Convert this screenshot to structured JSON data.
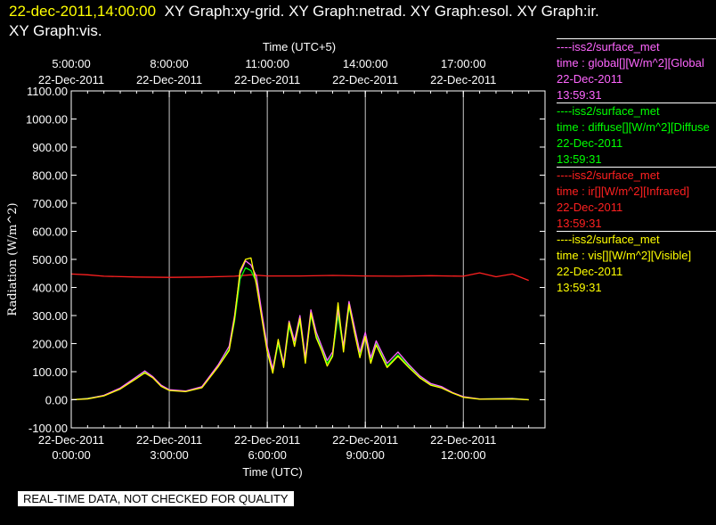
{
  "header": {
    "date_time": "22-dec-2011,14:00:00",
    "line1_rest": "XY Graph:xy-grid.  XY Graph:netrad.  XY Graph:esol.  XY Graph:ir.",
    "line2": "XY Graph:vis."
  },
  "legend": [
    {
      "source": "iss2/surface_met",
      "var": "time : global[][W/m^2][Global",
      "date": "22-Dec-2011",
      "time": "13:59:31",
      "color": "#ff66ff"
    },
    {
      "source": "iss2/surface_met",
      "var": "time : diffuse[][W/m^2][Diffuse",
      "date": "22-Dec-2011",
      "time": "13:59:31",
      "color": "#00ff00"
    },
    {
      "source": "iss2/surface_met",
      "var": "time : ir[][W/m^2][Infrared]",
      "date": "22-Dec-2011",
      "time": "13:59:31",
      "color": "#ff2020"
    },
    {
      "source": "iss2/surface_met",
      "var": "time : vis[][W/m^2][Visible]",
      "date": "22-Dec-2011",
      "time": "13:59:31",
      "color": "#ffff00"
    }
  ],
  "disclaimer": "REAL-TIME DATA, NOT CHECKED FOR QUALITY",
  "chart_data": {
    "type": "line",
    "xlabel": "Time (UTC)",
    "x2label": "Time (UTC+5)",
    "ylabel": "Radiation (W/m^2)",
    "xlim": [
      "22-Dec-2011 0:00",
      "22-Dec-2011 14:30"
    ],
    "ylim": [
      -100,
      1100
    ],
    "y_ticks": [
      "-100.00",
      "0.00",
      "100.00",
      "200.00",
      "300.00",
      "400.00",
      "500.00",
      "600.00",
      "700.00",
      "800.00",
      "900.00",
      "1000.00",
      "1100.00"
    ],
    "x_ticks": [
      {
        "x": "22-Dec-2011 0:00",
        "date": "22-Dec-2011",
        "time": "0:00:00"
      },
      {
        "x": "22-Dec-2011 3:00",
        "date": "22-Dec-2011",
        "time": "3:00:00"
      },
      {
        "x": "22-Dec-2011 6:00",
        "date": "22-Dec-2011",
        "time": "6:00:00"
      },
      {
        "x": "22-Dec-2011 9:00",
        "date": "22-Dec-2011",
        "time": "9:00:00"
      },
      {
        "x": "22-Dec-2011 12:00",
        "date": "22-Dec-2011",
        "time": "12:00:00"
      }
    ],
    "x2_ticks": [
      {
        "x": "22-Dec-2011 0:00",
        "date": "22-Dec-2011",
        "time": "5:00:00"
      },
      {
        "x": "22-Dec-2011 3:00",
        "date": "22-Dec-2011",
        "time": "8:00:00"
      },
      {
        "x": "22-Dec-2011 6:00",
        "date": "22-Dec-2011",
        "time": "11:00:00"
      },
      {
        "x": "22-Dec-2011 9:00",
        "date": "22-Dec-2011",
        "time": "14:00:00"
      },
      {
        "x": "22-Dec-2011 12:00",
        "date": "22-Dec-2011",
        "time": "17:00:00"
      }
    ],
    "grid": "vertical",
    "series": [
      {
        "color": "#ff2020",
        "points": [
          [
            "22-Dec-2011 0:00",
            448
          ],
          [
            "22-Dec-2011 0:30",
            445
          ],
          [
            "22-Dec-2011 1:00",
            440
          ],
          [
            "22-Dec-2011 2:00",
            437
          ],
          [
            "22-Dec-2011 3:00",
            436
          ],
          [
            "22-Dec-2011 4:00",
            437
          ],
          [
            "22-Dec-2011 5:00",
            440
          ],
          [
            "22-Dec-2011 5:30",
            445
          ],
          [
            "22-Dec-2011 6:00",
            441
          ],
          [
            "22-Dec-2011 7:00",
            441
          ],
          [
            "22-Dec-2011 8:00",
            443
          ],
          [
            "22-Dec-2011 9:00",
            441
          ],
          [
            "22-Dec-2011 10:00",
            440
          ],
          [
            "22-Dec-2011 11:00",
            442
          ],
          [
            "22-Dec-2011 12:00",
            440
          ],
          [
            "22-Dec-2011 12:30",
            452
          ],
          [
            "22-Dec-2011 13:00",
            438
          ],
          [
            "22-Dec-2011 13:30",
            448
          ],
          [
            "22-Dec-2011 14:00",
            425
          ]
        ]
      },
      {
        "color": "#00ff00",
        "points": [
          [
            "22-Dec-2011 0:00",
            0
          ],
          [
            "22-Dec-2011 0:30",
            5
          ],
          [
            "22-Dec-2011 1:00",
            15
          ],
          [
            "22-Dec-2011 1:30",
            40
          ],
          [
            "22-Dec-2011 2:00",
            80
          ],
          [
            "22-Dec-2011 2:15",
            100
          ],
          [
            "22-Dec-2011 2:30",
            80
          ],
          [
            "22-Dec-2011 2:45",
            50
          ],
          [
            "22-Dec-2011 3:00",
            35
          ],
          [
            "22-Dec-2011 3:30",
            30
          ],
          [
            "22-Dec-2011 4:00",
            45
          ],
          [
            "22-Dec-2011 4:30",
            120
          ],
          [
            "22-Dec-2011 4:50",
            180
          ],
          [
            "22-Dec-2011 5:00",
            280
          ],
          [
            "22-Dec-2011 5:10",
            430
          ],
          [
            "22-Dec-2011 5:20",
            470
          ],
          [
            "22-Dec-2011 5:30",
            460
          ],
          [
            "22-Dec-2011 5:40",
            420
          ],
          [
            "22-Dec-2011 5:50",
            300
          ],
          [
            "22-Dec-2011 6:00",
            180
          ],
          [
            "22-Dec-2011 6:10",
            100
          ],
          [
            "22-Dec-2011 6:20",
            200
          ],
          [
            "22-Dec-2011 6:30",
            120
          ],
          [
            "22-Dec-2011 6:40",
            260
          ],
          [
            "22-Dec-2011 6:50",
            200
          ],
          [
            "22-Dec-2011 7:00",
            280
          ],
          [
            "22-Dec-2011 7:10",
            140
          ],
          [
            "22-Dec-2011 7:20",
            300
          ],
          [
            "22-Dec-2011 7:30",
            230
          ],
          [
            "22-Dec-2011 7:40",
            180
          ],
          [
            "22-Dec-2011 7:50",
            130
          ],
          [
            "22-Dec-2011 8:00",
            160
          ],
          [
            "22-Dec-2011 8:10",
            300
          ],
          [
            "22-Dec-2011 8:20",
            180
          ],
          [
            "22-Dec-2011 8:30",
            330
          ],
          [
            "22-Dec-2011 8:40",
            250
          ],
          [
            "22-Dec-2011 8:50",
            160
          ],
          [
            "22-Dec-2011 9:00",
            230
          ],
          [
            "22-Dec-2011 9:10",
            140
          ],
          [
            "22-Dec-2011 9:20",
            200
          ],
          [
            "22-Dec-2011 9:40",
            120
          ],
          [
            "22-Dec-2011 10:00",
            160
          ],
          [
            "22-Dec-2011 10:20",
            120
          ],
          [
            "22-Dec-2011 10:40",
            80
          ],
          [
            "22-Dec-2011 11:00",
            55
          ],
          [
            "22-Dec-2011 11:20",
            45
          ],
          [
            "22-Dec-2011 11:40",
            25
          ],
          [
            "22-Dec-2011 12:00",
            10
          ],
          [
            "22-Dec-2011 12:30",
            3
          ],
          [
            "22-Dec-2011 13:30",
            5
          ],
          [
            "22-Dec-2011 14:00",
            0
          ]
        ]
      },
      {
        "color": "#ff66ff",
        "points": [
          [
            "22-Dec-2011 0:00",
            0
          ],
          [
            "22-Dec-2011 0:30",
            4
          ],
          [
            "22-Dec-2011 1:00",
            16
          ],
          [
            "22-Dec-2011 1:30",
            42
          ],
          [
            "22-Dec-2011 2:00",
            82
          ],
          [
            "22-Dec-2011 2:15",
            103
          ],
          [
            "22-Dec-2011 2:30",
            82
          ],
          [
            "22-Dec-2011 2:45",
            52
          ],
          [
            "22-Dec-2011 3:00",
            36
          ],
          [
            "22-Dec-2011 3:30",
            31
          ],
          [
            "22-Dec-2011 4:00",
            47
          ],
          [
            "22-Dec-2011 4:30",
            125
          ],
          [
            "22-Dec-2011 4:50",
            190
          ],
          [
            "22-Dec-2011 5:00",
            300
          ],
          [
            "22-Dec-2011 5:10",
            450
          ],
          [
            "22-Dec-2011 5:20",
            495
          ],
          [
            "22-Dec-2011 5:30",
            480
          ],
          [
            "22-Dec-2011 5:40",
            440
          ],
          [
            "22-Dec-2011 5:50",
            310
          ],
          [
            "22-Dec-2011 6:00",
            190
          ],
          [
            "22-Dec-2011 6:10",
            110
          ],
          [
            "22-Dec-2011 6:20",
            210
          ],
          [
            "22-Dec-2011 6:30",
            130
          ],
          [
            "22-Dec-2011 6:40",
            280
          ],
          [
            "22-Dec-2011 6:50",
            210
          ],
          [
            "22-Dec-2011 7:00",
            300
          ],
          [
            "22-Dec-2011 7:10",
            150
          ],
          [
            "22-Dec-2011 7:20",
            320
          ],
          [
            "22-Dec-2011 7:30",
            240
          ],
          [
            "22-Dec-2011 7:40",
            190
          ],
          [
            "22-Dec-2011 7:50",
            140
          ],
          [
            "22-Dec-2011 8:00",
            170
          ],
          [
            "22-Dec-2011 8:10",
            320
          ],
          [
            "22-Dec-2011 8:20",
            190
          ],
          [
            "22-Dec-2011 8:30",
            350
          ],
          [
            "22-Dec-2011 8:40",
            260
          ],
          [
            "22-Dec-2011 8:50",
            170
          ],
          [
            "22-Dec-2011 9:00",
            240
          ],
          [
            "22-Dec-2011 9:10",
            150
          ],
          [
            "22-Dec-2011 9:20",
            210
          ],
          [
            "22-Dec-2011 9:40",
            130
          ],
          [
            "22-Dec-2011 10:00",
            170
          ],
          [
            "22-Dec-2011 10:20",
            125
          ],
          [
            "22-Dec-2011 10:40",
            85
          ],
          [
            "22-Dec-2011 11:00",
            58
          ],
          [
            "22-Dec-2011 11:20",
            47
          ],
          [
            "22-Dec-2011 11:40",
            26
          ],
          [
            "22-Dec-2011 12:00",
            11
          ],
          [
            "22-Dec-2011 12:30",
            3
          ],
          [
            "22-Dec-2011 13:30",
            4
          ],
          [
            "22-Dec-2011 14:00",
            0
          ]
        ]
      },
      {
        "color": "#ffff00",
        "points": [
          [
            "22-Dec-2011 0:00",
            0
          ],
          [
            "22-Dec-2011 0:30",
            3
          ],
          [
            "22-Dec-2011 1:00",
            14
          ],
          [
            "22-Dec-2011 1:30",
            38
          ],
          [
            "22-Dec-2011 2:00",
            76
          ],
          [
            "22-Dec-2011 2:15",
            96
          ],
          [
            "22-Dec-2011 2:30",
            78
          ],
          [
            "22-Dec-2011 2:45",
            48
          ],
          [
            "22-Dec-2011 3:00",
            33
          ],
          [
            "22-Dec-2011 3:30",
            29
          ],
          [
            "22-Dec-2011 4:00",
            43
          ],
          [
            "22-Dec-2011 4:30",
            118
          ],
          [
            "22-Dec-2011 4:50",
            175
          ],
          [
            "22-Dec-2011 5:00",
            290
          ],
          [
            "22-Dec-2011 5:10",
            460
          ],
          [
            "22-Dec-2011 5:20",
            500
          ],
          [
            "22-Dec-2011 5:30",
            505
          ],
          [
            "22-Dec-2011 5:40",
            410
          ],
          [
            "22-Dec-2011 5:50",
            290
          ],
          [
            "22-Dec-2011 6:00",
            170
          ],
          [
            "22-Dec-2011 6:10",
            95
          ],
          [
            "22-Dec-2011 6:20",
            215
          ],
          [
            "22-Dec-2011 6:30",
            115
          ],
          [
            "22-Dec-2011 6:40",
            275
          ],
          [
            "22-Dec-2011 6:50",
            190
          ],
          [
            "22-Dec-2011 7:00",
            290
          ],
          [
            "22-Dec-2011 7:10",
            130
          ],
          [
            "22-Dec-2011 7:20",
            310
          ],
          [
            "22-Dec-2011 7:30",
            220
          ],
          [
            "22-Dec-2011 7:40",
            175
          ],
          [
            "22-Dec-2011 7:50",
            120
          ],
          [
            "22-Dec-2011 8:00",
            155
          ],
          [
            "22-Dec-2011 8:10",
            345
          ],
          [
            "22-Dec-2011 8:20",
            170
          ],
          [
            "22-Dec-2011 8:30",
            340
          ],
          [
            "22-Dec-2011 8:40",
            240
          ],
          [
            "22-Dec-2011 8:50",
            150
          ],
          [
            "22-Dec-2011 9:00",
            225
          ],
          [
            "22-Dec-2011 9:10",
            130
          ],
          [
            "22-Dec-2011 9:20",
            195
          ],
          [
            "22-Dec-2011 9:40",
            115
          ],
          [
            "22-Dec-2011 10:00",
            155
          ],
          [
            "22-Dec-2011 10:20",
            115
          ],
          [
            "22-Dec-2011 10:40",
            78
          ],
          [
            "22-Dec-2011 11:00",
            52
          ],
          [
            "22-Dec-2011 11:20",
            42
          ],
          [
            "22-Dec-2011 11:40",
            24
          ],
          [
            "22-Dec-2011 12:00",
            9
          ],
          [
            "22-Dec-2011 12:30",
            2
          ],
          [
            "22-Dec-2011 13:30",
            3
          ],
          [
            "22-Dec-2011 14:00",
            0
          ]
        ]
      }
    ]
  }
}
